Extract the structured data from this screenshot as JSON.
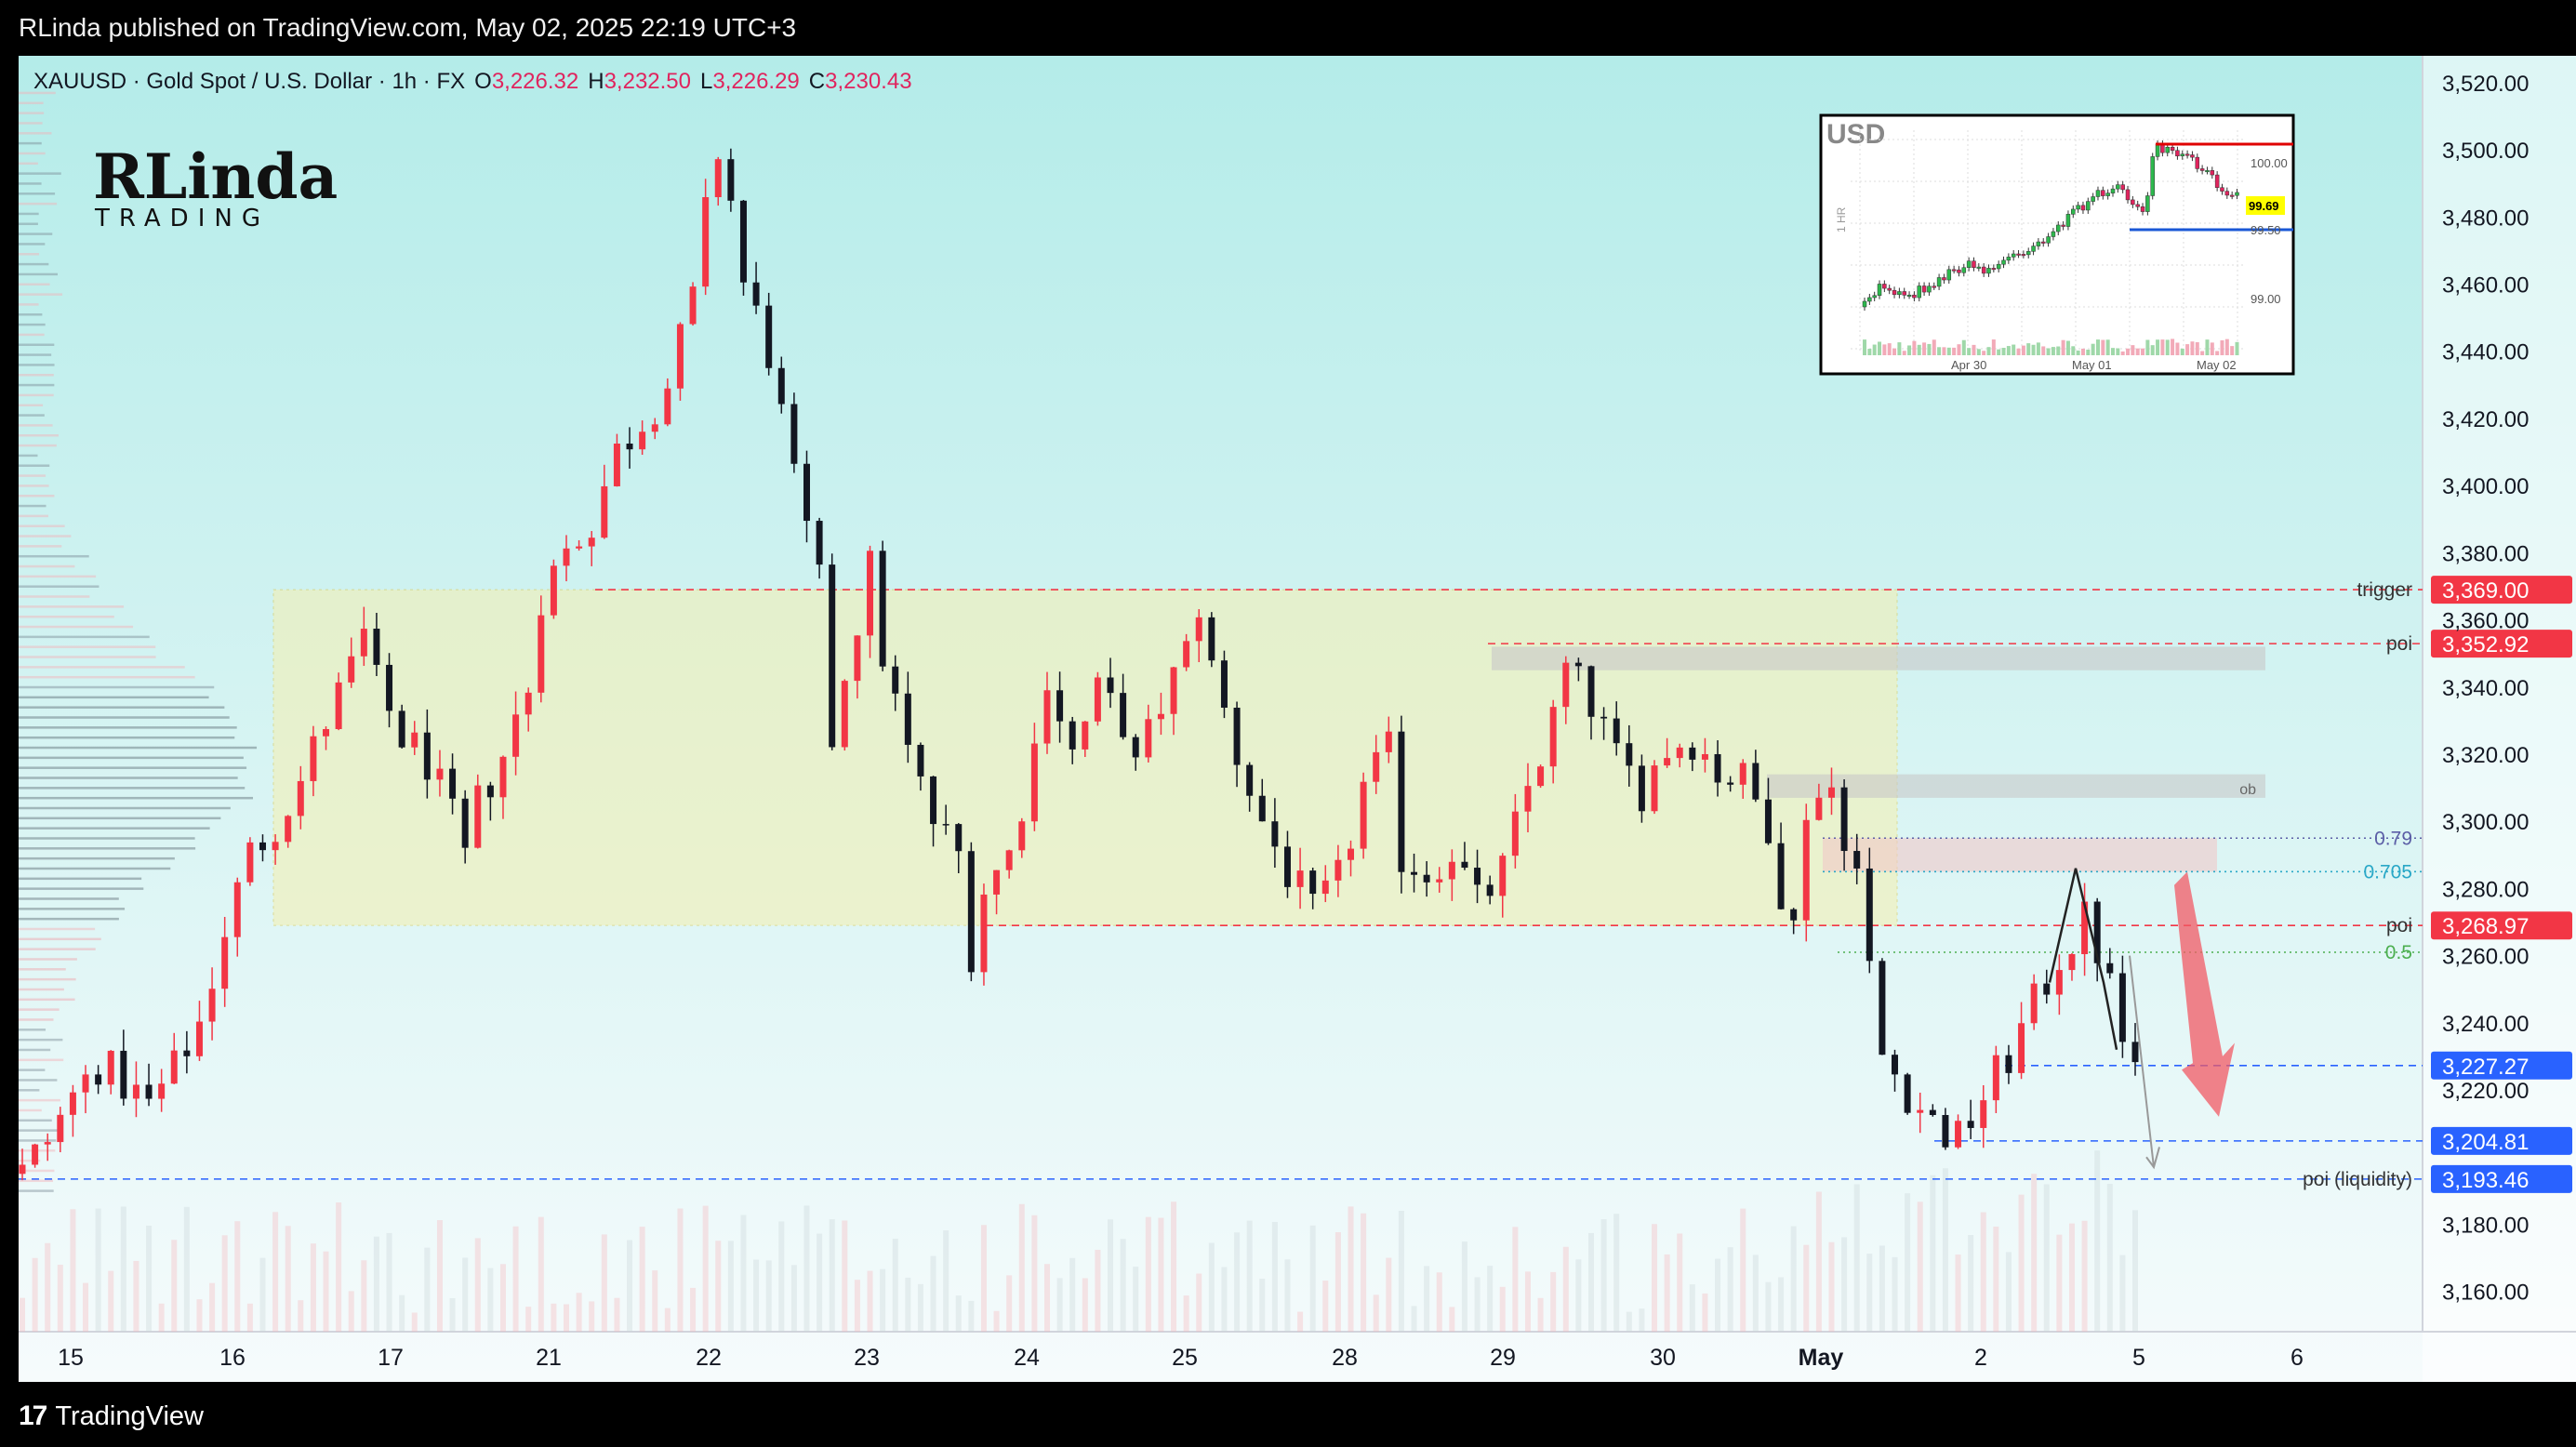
{
  "header": {
    "published": "RLinda published on TradingView.com, May 02, 2025 22:19 UTC+3"
  },
  "symbol": {
    "title": "XAUUSD · Gold Spot / U.S. Dollar · 1h · FX",
    "open_label": "O",
    "open": "3,226.32",
    "high_label": "H",
    "high": "3,232.50",
    "low_label": "L",
    "low": "3,226.29",
    "close_label": "C",
    "close": "3,230.43"
  },
  "watermark": {
    "line1": "RLinda",
    "line2": "TRADING"
  },
  "footer": {
    "brand": "TradingView",
    "logo_glyph": "17"
  },
  "inset": {
    "title": "USD",
    "side_label": "1 HR",
    "price_labels": [
      "100.00",
      "99.69",
      "99.50",
      "99.00"
    ],
    "date_labels": [
      "Apr 30",
      "May 01",
      "May 02"
    ],
    "colors": {
      "up": "#2db84d",
      "down": "#e0245e",
      "resistance": "#e00000",
      "support": "#1a57d6"
    }
  },
  "chart_data": {
    "type": "candlestick",
    "interval": "1h",
    "symbol": "XAUUSD",
    "y_axis": {
      "ylim": [
        3148,
        3528
      ],
      "ticks": [
        3520,
        3500,
        3480,
        3460,
        3440,
        3420,
        3400,
        3380,
        3360,
        3340,
        3320,
        3300,
        3280,
        3260,
        3240,
        3220,
        3180,
        3160
      ],
      "tick_labels": [
        "3,520.00",
        "3,500.00",
        "3,480.00",
        "3,460.00",
        "3,440.00",
        "3,420.00",
        "3,400.00",
        "3,380.00",
        "3,360.00",
        "3,340.00",
        "3,320.00",
        "3,300.00",
        "3,280.00",
        "3,260.00",
        "3,240.00",
        "3,220.00",
        "3,180.00",
        "3,160.00"
      ]
    },
    "x_axis": {
      "ticks": [
        {
          "label": "15",
          "bold": false
        },
        {
          "label": "16",
          "bold": false
        },
        {
          "label": "17",
          "bold": false
        },
        {
          "label": "21",
          "bold": false
        },
        {
          "label": "22",
          "bold": false
        },
        {
          "label": "23",
          "bold": false
        },
        {
          "label": "24",
          "bold": false
        },
        {
          "label": "25",
          "bold": false
        },
        {
          "label": "28",
          "bold": false
        },
        {
          "label": "29",
          "bold": false
        },
        {
          "label": "30",
          "bold": false
        },
        {
          "label": "May",
          "bold": true
        },
        {
          "label": "2",
          "bold": false
        },
        {
          "label": "5",
          "bold": false
        },
        {
          "label": "6",
          "bold": false
        }
      ]
    },
    "price_path": [
      [
        0,
        3195
      ],
      [
        2,
        3205
      ],
      [
        4,
        3218
      ],
      [
        6,
        3228
      ],
      [
        8,
        3222
      ],
      [
        10,
        3215
      ],
      [
        12,
        3226
      ],
      [
        14,
        3240
      ],
      [
        16,
        3268
      ],
      [
        18,
        3290
      ],
      [
        20,
        3300
      ],
      [
        22,
        3312
      ],
      [
        24,
        3330
      ],
      [
        26,
        3345
      ],
      [
        27,
        3355
      ],
      [
        28,
        3340
      ],
      [
        30,
        3325
      ],
      [
        32,
        3318
      ],
      [
        34,
        3300
      ],
      [
        35,
        3288
      ],
      [
        36,
        3305
      ],
      [
        38,
        3320
      ],
      [
        40,
        3340
      ],
      [
        41,
        3368
      ],
      [
        43,
        3380
      ],
      [
        45,
        3390
      ],
      [
        47,
        3410
      ],
      [
        49,
        3420
      ],
      [
        51,
        3430
      ],
      [
        53,
        3455
      ],
      [
        54,
        3480
      ],
      [
        55,
        3500
      ],
      [
        56,
        3485
      ],
      [
        57,
        3460
      ],
      [
        59,
        3440
      ],
      [
        61,
        3400
      ],
      [
        63,
        3370
      ],
      [
        64,
        3325
      ],
      [
        65,
        3345
      ],
      [
        67,
        3375
      ],
      [
        68,
        3350
      ],
      [
        70,
        3320
      ],
      [
        72,
        3300
      ],
      [
        74,
        3290
      ],
      [
        75,
        3262
      ],
      [
        76,
        3280
      ],
      [
        78,
        3290
      ],
      [
        80,
        3322
      ],
      [
        81,
        3345
      ],
      [
        83,
        3320
      ],
      [
        85,
        3338
      ],
      [
        87,
        3330
      ],
      [
        88,
        3315
      ],
      [
        90,
        3335
      ],
      [
        92,
        3350
      ],
      [
        93,
        3365
      ],
      [
        94,
        3345
      ],
      [
        96,
        3320
      ],
      [
        98,
        3300
      ],
      [
        100,
        3285
      ],
      [
        102,
        3272
      ],
      [
        104,
        3282
      ],
      [
        106,
        3310
      ],
      [
        108,
        3320
      ],
      [
        109,
        3290
      ],
      [
        111,
        3285
      ],
      [
        113,
        3292
      ],
      [
        115,
        3275
      ],
      [
        117,
        3285
      ],
      [
        119,
        3310
      ],
      [
        121,
        3330
      ],
      [
        122,
        3345
      ],
      [
        124,
        3335
      ],
      [
        126,
        3318
      ],
      [
        128,
        3310
      ],
      [
        130,
        3322
      ],
      [
        132,
        3325
      ],
      [
        134,
        3315
      ],
      [
        136,
        3312
      ],
      [
        138,
        3300
      ],
      [
        139,
        3280
      ],
      [
        140,
        3268
      ],
      [
        141,
        3305
      ],
      [
        143,
        3310
      ],
      [
        145,
        3285
      ],
      [
        146,
        3255
      ],
      [
        147,
        3230
      ],
      [
        149,
        3220
      ],
      [
        151,
        3210
      ],
      [
        153,
        3205
      ],
      [
        155,
        3218
      ],
      [
        157,
        3230
      ],
      [
        159,
        3245
      ],
      [
        161,
        3260
      ],
      [
        163,
        3270
      ],
      [
        164,
        3262
      ],
      [
        165,
        3250
      ],
      [
        166,
        3235
      ],
      [
        167,
        3227
      ]
    ],
    "levels": [
      {
        "name": "trigger",
        "price": 3369.0,
        "price_label": "3,369.00",
        "style": "dashed",
        "color": "#f23645",
        "label_bg": "#f23645"
      },
      {
        "name": "poi",
        "price": 3352.92,
        "price_label": "3,352.92",
        "style": "dashed",
        "color": "#f23645",
        "label_bg": "#f23645"
      },
      {
        "name": "0.79",
        "price": 3295,
        "style": "dotted",
        "color": "#5b5ea6"
      },
      {
        "name": "0.705",
        "price": 3285,
        "style": "dotted",
        "color": "#2aa8c7"
      },
      {
        "name": "poi",
        "price": 3268.97,
        "price_label": "3,268.97",
        "style": "dashed",
        "color": "#f23645",
        "label_bg": "#f23645"
      },
      {
        "name": "0.5",
        "price": 3261,
        "style": "dotted",
        "color": "#4caf50"
      },
      {
        "name": "",
        "price": 3227.27,
        "price_label": "3,227.27",
        "style": "dashed",
        "color": "#2962ff",
        "label_bg": "#2962ff"
      },
      {
        "name": "",
        "price": 3204.81,
        "price_label": "3,204.81",
        "style": "dashed",
        "color": "#2962ff",
        "label_bg": "#2962ff"
      },
      {
        "name": "poi (liquidity)",
        "price": 3193.46,
        "price_label": "3,193.46",
        "style": "dashed",
        "color": "#2962ff",
        "label_bg": "#2962ff"
      }
    ],
    "zones": [
      {
        "name": "range",
        "top": 3369,
        "bottom": 3269,
        "color": "#f6f0b0"
      },
      {
        "name": "poi-zone",
        "top": 3352,
        "bottom": 3345,
        "color": "#c8c8c8"
      },
      {
        "name": "ob",
        "top": 3314,
        "bottom": 3307,
        "color": "#c8c8c8",
        "label": "ob"
      },
      {
        "name": "fib-zone",
        "top": 3295,
        "bottom": 3285,
        "color": "#f0c8c8"
      }
    ],
    "colors": {
      "up": "#f23645",
      "down": "#131722",
      "bg_top": "#b4ece9",
      "bg_bottom": "#f6fbfc",
      "forecast_arrow": "#f25a64"
    }
  }
}
